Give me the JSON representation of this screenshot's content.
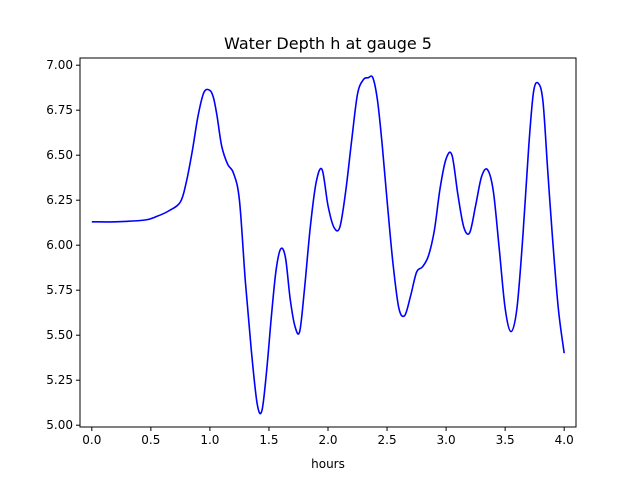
{
  "chart_data": {
    "type": "line",
    "title": "Water Depth h at gauge 5",
    "xlabel": "hours",
    "ylabel": "",
    "xlim": [
      -0.1,
      4.1
    ],
    "ylim": [
      4.99,
      7.04
    ],
    "grid": false,
    "x_ticks": [
      0.0,
      0.5,
      1.0,
      1.5,
      2.0,
      2.5,
      3.0,
      3.5,
      4.0
    ],
    "x_tick_labels": [
      "0.0",
      "0.5",
      "1.0",
      "1.5",
      "2.0",
      "2.5",
      "3.0",
      "3.5",
      "4.0"
    ],
    "y_ticks": [
      5.0,
      5.25,
      5.5,
      5.75,
      6.0,
      6.25,
      6.5,
      6.75,
      7.0
    ],
    "y_tick_labels": [
      "5.00",
      "5.25",
      "5.50",
      "5.75",
      "6.00",
      "6.25",
      "6.50",
      "6.75",
      "7.00"
    ],
    "series": [
      {
        "color": "#0000ff",
        "x": [
          0.0,
          0.2,
          0.45,
          0.55,
          0.65,
          0.75,
          0.8,
          0.85,
          0.9,
          0.95,
          1.0,
          1.03,
          1.06,
          1.1,
          1.15,
          1.2,
          1.25,
          1.3,
          1.35,
          1.4,
          1.44,
          1.48,
          1.52,
          1.56,
          1.6,
          1.64,
          1.68,
          1.72,
          1.76,
          1.8,
          1.85,
          1.9,
          1.95,
          2.0,
          2.05,
          2.1,
          2.15,
          2.2,
          2.25,
          2.3,
          2.34,
          2.38,
          2.42,
          2.46,
          2.5,
          2.55,
          2.6,
          2.65,
          2.7,
          2.75,
          2.8,
          2.85,
          2.9,
          2.95,
          3.0,
          3.05,
          3.1,
          3.15,
          3.2,
          3.25,
          3.3,
          3.35,
          3.4,
          3.45,
          3.5,
          3.55,
          3.6,
          3.65,
          3.7,
          3.74,
          3.78,
          3.82,
          3.86,
          3.9,
          3.95,
          4.0
        ],
        "y": [
          6.13,
          6.13,
          6.14,
          6.16,
          6.19,
          6.24,
          6.35,
          6.52,
          6.72,
          6.85,
          6.86,
          6.82,
          6.72,
          6.55,
          6.45,
          6.4,
          6.25,
          5.8,
          5.42,
          5.12,
          5.08,
          5.3,
          5.6,
          5.86,
          5.98,
          5.93,
          5.7,
          5.55,
          5.52,
          5.75,
          6.1,
          6.35,
          6.42,
          6.22,
          6.1,
          6.1,
          6.3,
          6.58,
          6.84,
          6.92,
          6.93,
          6.93,
          6.8,
          6.55,
          6.25,
          5.9,
          5.65,
          5.61,
          5.72,
          5.85,
          5.88,
          5.94,
          6.08,
          6.32,
          6.48,
          6.5,
          6.28,
          6.1,
          6.07,
          6.22,
          6.38,
          6.42,
          6.3,
          5.98,
          5.65,
          5.52,
          5.65,
          6.05,
          6.55,
          6.85,
          6.9,
          6.8,
          6.42,
          6.05,
          5.65,
          5.4
        ]
      }
    ]
  }
}
